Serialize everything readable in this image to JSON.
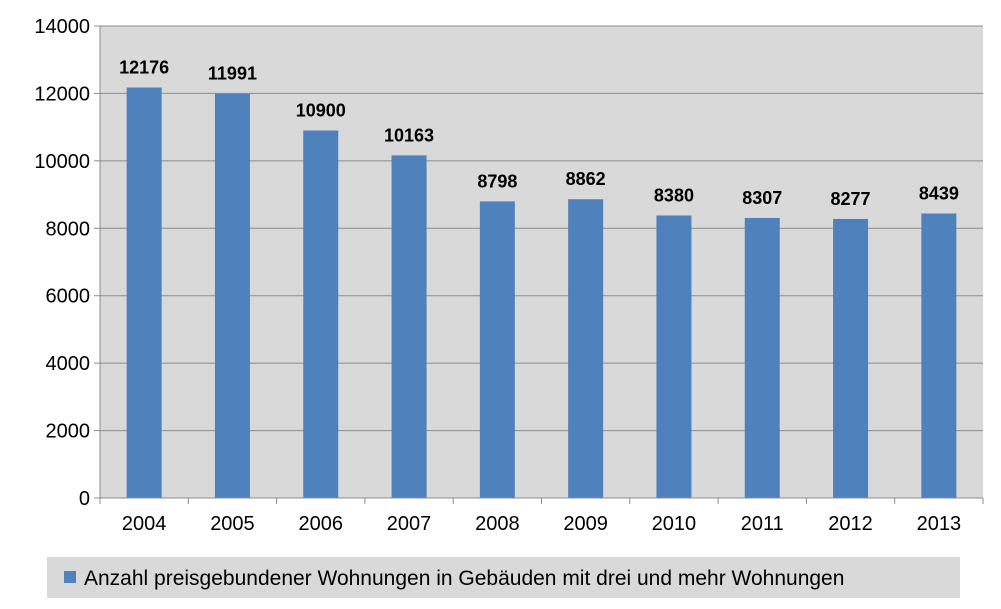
{
  "chart_data": {
    "type": "bar",
    "categories": [
      "2004",
      "2005",
      "2006",
      "2007",
      "2008",
      "2009",
      "2010",
      "2011",
      "2012",
      "2013"
    ],
    "series": [
      {
        "name": "Anzahl preisgebundener Wohnungen in Gebäuden mit drei und mehr Wohnungen",
        "values": [
          12176,
          11991,
          10900,
          10163,
          8798,
          8862,
          8380,
          8307,
          8277,
          8439
        ],
        "color": "#4f81bd"
      }
    ],
    "data_labels": [
      "12176",
      "11991",
      "10900",
      "10163",
      "8798",
      "8862",
      "8380",
      "8307",
      "8277",
      "8439"
    ],
    "yticks": [
      0,
      2000,
      4000,
      6000,
      8000,
      10000,
      12000,
      14000
    ],
    "ylim": [
      0,
      14000
    ],
    "grid": true,
    "legend_position": "bottom",
    "colors": {
      "plot_background": "#d9d9d9",
      "gridline": "#8c8c8c",
      "axis": "#8c8c8c",
      "legend_background": "#d9d9d9"
    }
  }
}
